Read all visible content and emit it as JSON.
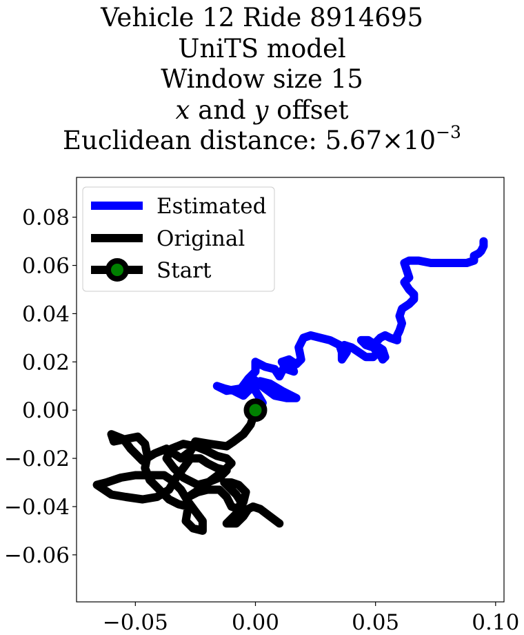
{
  "chart_data": {
    "type": "line",
    "title_lines": {
      "line1": "Vehicle 12 Ride 8914695",
      "line2": "UniTS model",
      "line3": "Window size 15",
      "line4_var_x": "x",
      "line4_and": " and ",
      "line4_var_y": "y",
      "line4_rest": " offset",
      "line5_prefix": "Euclidean distance: 5.67",
      "line5_times": "×",
      "line5_base": "10",
      "line5_exp": "−3"
    },
    "xlabel": "",
    "ylabel": "",
    "xlim": [
      -0.0745,
      0.1035
    ],
    "ylim": [
      -0.0795,
      0.0965
    ],
    "xticks": [
      {
        "value": -0.05,
        "label": "−0.05"
      },
      {
        "value": 0.0,
        "label": "0.00"
      },
      {
        "value": 0.05,
        "label": "0.05"
      },
      {
        "value": 0.1,
        "label": "0.10"
      }
    ],
    "yticks": [
      {
        "value": 0.08,
        "label": "0.08"
      },
      {
        "value": 0.06,
        "label": "0.06"
      },
      {
        "value": 0.04,
        "label": "0.04"
      },
      {
        "value": 0.02,
        "label": "0.02"
      },
      {
        "value": 0.0,
        "label": "0.00"
      },
      {
        "value": -0.02,
        "label": "−0.02"
      },
      {
        "value": -0.04,
        "label": "−0.04"
      },
      {
        "value": -0.06,
        "label": "−0.06"
      }
    ],
    "grid": false,
    "legend_position": "upper-left",
    "series": [
      {
        "name": "Estimated",
        "color": "#0000ff",
        "points": [
          [
            0.0,
            0.0
          ],
          [
            0.003,
            0.003
          ],
          [
            0.0,
            0.008
          ],
          [
            -0.004,
            0.011
          ],
          [
            -0.001,
            0.013
          ],
          [
            0.004,
            0.009
          ],
          [
            0.008,
            0.006
          ],
          [
            0.013,
            0.005
          ],
          [
            0.017,
            0.005
          ],
          [
            0.011,
            0.008
          ],
          [
            0.006,
            0.011
          ],
          [
            0.002,
            0.012
          ],
          [
            -0.002,
            0.009
          ],
          [
            -0.005,
            0.006
          ],
          [
            -0.009,
            0.008
          ],
          [
            -0.013,
            0.009
          ],
          [
            -0.016,
            0.01
          ],
          [
            -0.012,
            0.008
          ],
          [
            -0.006,
            0.009
          ],
          [
            -0.003,
            0.013
          ],
          [
            0.0,
            0.016
          ],
          [
            0.0,
            0.02
          ],
          [
            0.004,
            0.018
          ],
          [
            0.008,
            0.017
          ],
          [
            0.01,
            0.014
          ],
          [
            0.012,
            0.018
          ],
          [
            0.015,
            0.019
          ],
          [
            0.016,
            0.016
          ],
          [
            0.013,
            0.017
          ],
          [
            0.011,
            0.02
          ],
          [
            0.014,
            0.021
          ],
          [
            0.017,
            0.019
          ],
          [
            0.019,
            0.021
          ],
          [
            0.018,
            0.026
          ],
          [
            0.02,
            0.03
          ],
          [
            0.023,
            0.031
          ],
          [
            0.027,
            0.03
          ],
          [
            0.031,
            0.029
          ],
          [
            0.035,
            0.027
          ],
          [
            0.036,
            0.024
          ],
          [
            0.036,
            0.021
          ],
          [
            0.038,
            0.024
          ],
          [
            0.037,
            0.027
          ],
          [
            0.04,
            0.026
          ],
          [
            0.043,
            0.024
          ],
          [
            0.046,
            0.022
          ],
          [
            0.049,
            0.022
          ],
          [
            0.051,
            0.024
          ],
          [
            0.049,
            0.026
          ],
          [
            0.046,
            0.027
          ],
          [
            0.044,
            0.029
          ],
          [
            0.047,
            0.029
          ],
          [
            0.05,
            0.027
          ],
          [
            0.053,
            0.025
          ],
          [
            0.054,
            0.022
          ],
          [
            0.053,
            0.021
          ],
          [
            0.051,
            0.025
          ],
          [
            0.05,
            0.028
          ],
          [
            0.052,
            0.03
          ],
          [
            0.054,
            0.031
          ],
          [
            0.056,
            0.03
          ],
          [
            0.059,
            0.029
          ],
          [
            0.059,
            0.031
          ],
          [
            0.06,
            0.033
          ],
          [
            0.061,
            0.036
          ],
          [
            0.06,
            0.039
          ],
          [
            0.061,
            0.042
          ],
          [
            0.064,
            0.044
          ],
          [
            0.066,
            0.046
          ],
          [
            0.066,
            0.048
          ],
          [
            0.064,
            0.05
          ],
          [
            0.062,
            0.053
          ],
          [
            0.064,
            0.055
          ],
          [
            0.063,
            0.058
          ],
          [
            0.062,
            0.061
          ],
          [
            0.064,
            0.062
          ],
          [
            0.068,
            0.062
          ],
          [
            0.073,
            0.061
          ],
          [
            0.078,
            0.061
          ],
          [
            0.083,
            0.061
          ],
          [
            0.088,
            0.061
          ],
          [
            0.091,
            0.062
          ],
          [
            0.091,
            0.064
          ],
          [
            0.093,
            0.065
          ],
          [
            0.094,
            0.066
          ],
          [
            0.095,
            0.068
          ],
          [
            0.095,
            0.07
          ]
        ]
      },
      {
        "name": "Original",
        "color": "#000000",
        "points": [
          [
            0.0,
            0.0
          ],
          [
            -0.002,
            -0.006
          ],
          [
            -0.005,
            -0.01
          ],
          [
            -0.009,
            -0.013
          ],
          [
            -0.012,
            -0.015
          ],
          [
            -0.019,
            -0.014
          ],
          [
            -0.025,
            -0.013
          ],
          [
            -0.027,
            -0.017
          ],
          [
            -0.031,
            -0.02
          ],
          [
            -0.037,
            -0.016
          ],
          [
            -0.042,
            -0.018
          ],
          [
            -0.047,
            -0.021
          ],
          [
            -0.052,
            -0.016
          ],
          [
            -0.055,
            -0.012
          ],
          [
            -0.06,
            -0.01
          ],
          [
            -0.059,
            -0.013
          ],
          [
            -0.054,
            -0.012
          ],
          [
            -0.049,
            -0.011
          ],
          [
            -0.046,
            -0.014
          ],
          [
            -0.045,
            -0.019
          ],
          [
            -0.046,
            -0.024
          ],
          [
            -0.044,
            -0.029
          ],
          [
            -0.04,
            -0.033
          ],
          [
            -0.036,
            -0.037
          ],
          [
            -0.032,
            -0.039
          ],
          [
            -0.028,
            -0.04
          ],
          [
            -0.029,
            -0.046
          ],
          [
            -0.026,
            -0.049
          ],
          [
            -0.022,
            -0.05
          ],
          [
            -0.022,
            -0.046
          ],
          [
            -0.025,
            -0.042
          ],
          [
            -0.028,
            -0.038
          ],
          [
            -0.031,
            -0.033
          ],
          [
            -0.035,
            -0.029
          ],
          [
            -0.038,
            -0.027
          ],
          [
            -0.044,
            -0.027
          ],
          [
            -0.05,
            -0.027
          ],
          [
            -0.056,
            -0.028
          ],
          [
            -0.062,
            -0.03
          ],
          [
            -0.066,
            -0.031
          ],
          [
            -0.06,
            -0.035
          ],
          [
            -0.054,
            -0.036
          ],
          [
            -0.047,
            -0.037
          ],
          [
            -0.041,
            -0.036
          ],
          [
            -0.036,
            -0.033
          ],
          [
            -0.033,
            -0.028
          ],
          [
            -0.03,
            -0.024
          ],
          [
            -0.027,
            -0.02
          ],
          [
            -0.023,
            -0.02
          ],
          [
            -0.02,
            -0.022
          ],
          [
            -0.016,
            -0.024
          ],
          [
            -0.012,
            -0.025
          ],
          [
            -0.015,
            -0.028
          ],
          [
            -0.02,
            -0.03
          ],
          [
            -0.024,
            -0.031
          ],
          [
            -0.03,
            -0.028
          ],
          [
            -0.034,
            -0.024
          ],
          [
            -0.037,
            -0.02
          ],
          [
            -0.035,
            -0.016
          ],
          [
            -0.03,
            -0.014
          ],
          [
            -0.025,
            -0.015
          ],
          [
            -0.02,
            -0.017
          ],
          [
            -0.016,
            -0.019
          ],
          [
            -0.012,
            -0.02
          ],
          [
            -0.01,
            -0.022
          ],
          [
            -0.013,
            -0.025
          ],
          [
            -0.017,
            -0.028
          ],
          [
            -0.021,
            -0.031
          ],
          [
            -0.025,
            -0.034
          ],
          [
            -0.028,
            -0.036
          ],
          [
            -0.024,
            -0.034
          ],
          [
            -0.02,
            -0.033
          ],
          [
            -0.015,
            -0.033
          ],
          [
            -0.012,
            -0.036
          ],
          [
            -0.01,
            -0.04
          ],
          [
            -0.007,
            -0.041
          ],
          [
            -0.006,
            -0.038
          ],
          [
            -0.008,
            -0.035
          ],
          [
            -0.011,
            -0.032
          ],
          [
            -0.013,
            -0.03
          ],
          [
            -0.01,
            -0.03
          ],
          [
            -0.007,
            -0.031
          ],
          [
            -0.004,
            -0.034
          ],
          [
            -0.005,
            -0.038
          ],
          [
            -0.007,
            -0.042
          ],
          [
            -0.01,
            -0.045
          ],
          [
            -0.012,
            -0.047
          ],
          [
            -0.008,
            -0.047
          ],
          [
            -0.005,
            -0.044
          ],
          [
            -0.003,
            -0.041
          ],
          [
            -0.001,
            -0.04
          ],
          [
            0.002,
            -0.041
          ],
          [
            0.006,
            -0.044
          ],
          [
            0.01,
            -0.047
          ]
        ]
      }
    ],
    "start_point": {
      "name": "Start",
      "x": 0.0,
      "y": 0.0,
      "fill": "#008000",
      "edge": "#000000"
    },
    "legend": {
      "estimated_label": "Estimated",
      "original_label": "Original",
      "start_label": "Start"
    }
  }
}
